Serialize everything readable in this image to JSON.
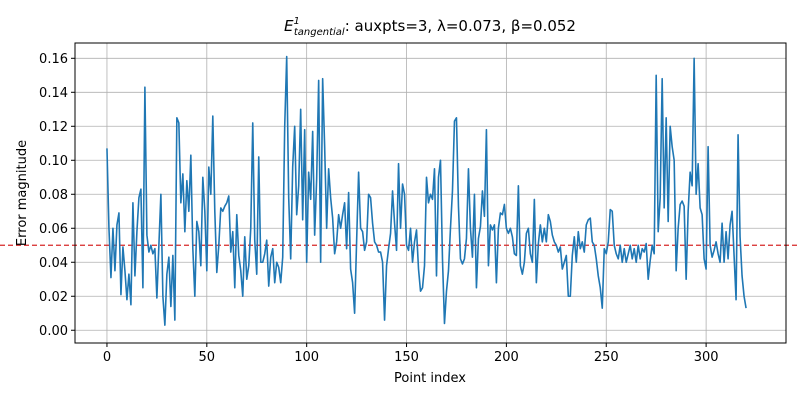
{
  "chart_data": {
    "type": "line",
    "title_main": "E",
    "title_sup": "1",
    "title_sub": "tangential",
    "title_rest": ": auxpts=3, λ=0.073, β=0.052",
    "xlabel": "Point index",
    "ylabel": "Error magnitude",
    "xlim": [
      -16,
      340
    ],
    "ylim": [
      -0.0075,
      0.169
    ],
    "xticks": [
      0,
      50,
      100,
      150,
      200,
      250,
      300
    ],
    "yticks": [
      0.0,
      0.02,
      0.04,
      0.06,
      0.08,
      0.1,
      0.12,
      0.14,
      0.16
    ],
    "ytick_labels": [
      "0.00",
      "0.02",
      "0.04",
      "0.06",
      "0.08",
      "0.10",
      "0.12",
      "0.14",
      "0.16"
    ],
    "grid": true,
    "threshold": 0.05,
    "threshold_color": "#d62728",
    "line_color": "#1f77b4",
    "series": [
      {
        "x_start": 0,
        "values": [
          0.107,
          0.06,
          0.031,
          0.06,
          0.035,
          0.062,
          0.069,
          0.021,
          0.049,
          0.035,
          0.018,
          0.033,
          0.015,
          0.075,
          0.032,
          0.058,
          0.078,
          0.083,
          0.025,
          0.143,
          0.056,
          0.046,
          0.05,
          0.045,
          0.048,
          0.019,
          0.05,
          0.08,
          0.02,
          0.003,
          0.033,
          0.043,
          0.014,
          0.044,
          0.006,
          0.125,
          0.122,
          0.075,
          0.092,
          0.058,
          0.088,
          0.07,
          0.103,
          0.048,
          0.02,
          0.064,
          0.058,
          0.038,
          0.09,
          0.07,
          0.035,
          0.096,
          0.08,
          0.126,
          0.07,
          0.034,
          0.05,
          0.072,
          0.07,
          0.073,
          0.075,
          0.079,
          0.046,
          0.058,
          0.025,
          0.068,
          0.044,
          0.035,
          0.02,
          0.055,
          0.03,
          0.038,
          0.06,
          0.122,
          0.053,
          0.033,
          0.102,
          0.04,
          0.04,
          0.045,
          0.053,
          0.026,
          0.043,
          0.048,
          0.028,
          0.04,
          0.037,
          0.028,
          0.043,
          0.12,
          0.161,
          0.078,
          0.042,
          0.096,
          0.12,
          0.068,
          0.085,
          0.13,
          0.065,
          0.118,
          0.04,
          0.093,
          0.077,
          0.117,
          0.056,
          0.089,
          0.147,
          0.04,
          0.148,
          0.108,
          0.06,
          0.095,
          0.078,
          0.066,
          0.045,
          0.052,
          0.068,
          0.06,
          0.068,
          0.075,
          0.048,
          0.081,
          0.036,
          0.028,
          0.01,
          0.052,
          0.093,
          0.06,
          0.058,
          0.047,
          0.052,
          0.08,
          0.078,
          0.063,
          0.052,
          0.05,
          0.046,
          0.046,
          0.04,
          0.006,
          0.038,
          0.048,
          0.057,
          0.082,
          0.063,
          0.047,
          0.098,
          0.06,
          0.086,
          0.08,
          0.05,
          0.047,
          0.06,
          0.04,
          0.052,
          0.059,
          0.036,
          0.023,
          0.025,
          0.038,
          0.09,
          0.075,
          0.08,
          0.077,
          0.095,
          0.032,
          0.09,
          0.1,
          0.042,
          0.004,
          0.023,
          0.035,
          0.06,
          0.082,
          0.123,
          0.125,
          0.073,
          0.042,
          0.039,
          0.042,
          0.054,
          0.095,
          0.06,
          0.043,
          0.08,
          0.025,
          0.054,
          0.061,
          0.082,
          0.067,
          0.118,
          0.038,
          0.062,
          0.059,
          0.062,
          0.028,
          0.06,
          0.069,
          0.068,
          0.074,
          0.06,
          0.057,
          0.06,
          0.055,
          0.045,
          0.044,
          0.085,
          0.038,
          0.033,
          0.04,
          0.057,
          0.06,
          0.045,
          0.04,
          0.077,
          0.028,
          0.051,
          0.062,
          0.052,
          0.06,
          0.052,
          0.068,
          0.064,
          0.056,
          0.052,
          0.05,
          0.046,
          0.049,
          0.036,
          0.04,
          0.044,
          0.02,
          0.02,
          0.044,
          0.055,
          0.04,
          0.058,
          0.048,
          0.052,
          0.046,
          0.062,
          0.065,
          0.066,
          0.052,
          0.05,
          0.042,
          0.032,
          0.025,
          0.013,
          0.048,
          0.045,
          0.052,
          0.071,
          0.07,
          0.05,
          0.045,
          0.042,
          0.05,
          0.04,
          0.048,
          0.04,
          0.045,
          0.05,
          0.042,
          0.048,
          0.04,
          0.05,
          0.042,
          0.048,
          0.046,
          0.051,
          0.03,
          0.041,
          0.05,
          0.045,
          0.15,
          0.058,
          0.078,
          0.148,
          0.072,
          0.125,
          0.064,
          0.12,
          0.108,
          0.1,
          0.035,
          0.06,
          0.074,
          0.076,
          0.073,
          0.03,
          0.07,
          0.093,
          0.085,
          0.16,
          0.08,
          0.098,
          0.072,
          0.068,
          0.042,
          0.036,
          0.108,
          0.05,
          0.043,
          0.047,
          0.052,
          0.045,
          0.04,
          0.063,
          0.04,
          0.058,
          0.042,
          0.062,
          0.07,
          0.044,
          0.018,
          0.115,
          0.055,
          0.032,
          0.02,
          0.013
        ]
      }
    ]
  }
}
